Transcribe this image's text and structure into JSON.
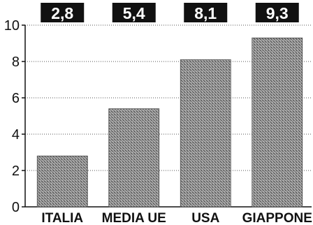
{
  "chart_data": {
    "type": "bar",
    "categories": [
      "ITALIA",
      "MEDIA UE",
      "USA",
      "GIAPPONE"
    ],
    "values": [
      2.8,
      5.4,
      8.1,
      9.3
    ],
    "value_labels": [
      "2,8",
      "5,4",
      "8,1",
      "9,3"
    ],
    "title": "",
    "xlabel": "",
    "ylabel": "",
    "ylim": [
      0,
      10
    ],
    "yticks": [
      0,
      2,
      4,
      6,
      8,
      10
    ],
    "grid": "horizontal dotted",
    "legend": "none",
    "colors": {
      "bar": "#8a8a8a",
      "label_box": "#111111",
      "label_text": "#ffffff",
      "axis": "#111111",
      "grid": "#555555"
    }
  }
}
